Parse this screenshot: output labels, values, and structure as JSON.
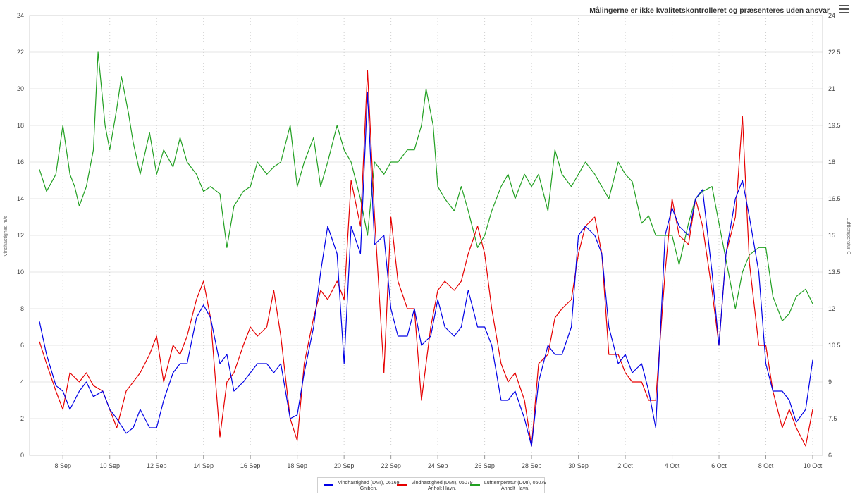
{
  "notice": "Målingerne er ikke kvalitetskontrolleret og præsenteres uden ansvar",
  "menu_icon": "hamburger-menu-icon",
  "chart_data": {
    "type": "line",
    "x_tick_labels": [
      "8 Sep",
      "10 Sep",
      "12 Sep",
      "14 Sep",
      "16 Sep",
      "18 Sep",
      "20 Sep",
      "22 Sep",
      "24 Sep",
      "26 Sep",
      "28 Sep",
      "30 Sep",
      "2 Oct",
      "4 Oct",
      "6 Oct",
      "8 Oct",
      "10 Oct"
    ],
    "x_range_days": [
      0,
      33
    ],
    "ylabel_left": "Vindhastighed m/s",
    "ylabel_right": "Lufttemperatur C",
    "ylim_left": [
      0,
      24
    ],
    "ylim_right": [
      6,
      24
    ],
    "yticks_left": [
      "0",
      "2",
      "4",
      "6",
      "8",
      "10",
      "12",
      "14",
      "16",
      "18",
      "20",
      "22",
      "24"
    ],
    "yticks_right": [
      "6",
      "7.5",
      "9",
      "10.5",
      "12",
      "13.5",
      "15",
      "16.5",
      "18",
      "19.5",
      "21",
      "22.5",
      "24"
    ],
    "grid": true,
    "legend_position": "bottom-center",
    "series": [
      {
        "name": "Vindhastighed (DMI), 06169 Gniben,",
        "axis": "left",
        "color": "#0000e6",
        "points": [
          [
            0,
            7.3
          ],
          [
            0.3,
            5.5
          ],
          [
            0.7,
            3.8
          ],
          [
            1,
            3.5
          ],
          [
            1.3,
            2.5
          ],
          [
            1.7,
            3.5
          ],
          [
            2,
            4.0
          ],
          [
            2.3,
            3.2
          ],
          [
            2.7,
            3.5
          ],
          [
            3,
            2.5
          ],
          [
            3.3,
            2.0
          ],
          [
            3.7,
            1.2
          ],
          [
            4,
            1.5
          ],
          [
            4.3,
            2.5
          ],
          [
            4.7,
            1.5
          ],
          [
            5,
            1.5
          ],
          [
            5.3,
            3.0
          ],
          [
            5.7,
            4.5
          ],
          [
            6,
            5.0
          ],
          [
            6.3,
            5.0
          ],
          [
            6.7,
            7.5
          ],
          [
            7,
            8.2
          ],
          [
            7.3,
            7.5
          ],
          [
            7.7,
            5.0
          ],
          [
            8,
            5.5
          ],
          [
            8.3,
            3.5
          ],
          [
            8.7,
            4.0
          ],
          [
            9,
            4.5
          ],
          [
            9.3,
            5.0
          ],
          [
            9.7,
            5.0
          ],
          [
            10,
            4.5
          ],
          [
            10.3,
            5.0
          ],
          [
            10.7,
            2.0
          ],
          [
            11,
            2.2
          ],
          [
            11.3,
            4.5
          ],
          [
            11.7,
            7.0
          ],
          [
            12,
            10.0
          ],
          [
            12.3,
            12.5
          ],
          [
            12.7,
            11.0
          ],
          [
            13,
            5.0
          ],
          [
            13.3,
            12.5
          ],
          [
            13.7,
            11.0
          ],
          [
            14,
            19.8
          ],
          [
            14.3,
            11.5
          ],
          [
            14.7,
            12.0
          ],
          [
            15,
            8.0
          ],
          [
            15.3,
            6.5
          ],
          [
            15.7,
            6.5
          ],
          [
            16,
            8.0
          ],
          [
            16.3,
            6.0
          ],
          [
            16.7,
            6.5
          ],
          [
            17,
            8.5
          ],
          [
            17.3,
            7.0
          ],
          [
            17.7,
            6.5
          ],
          [
            18,
            7.0
          ],
          [
            18.3,
            9.0
          ],
          [
            18.7,
            7.0
          ],
          [
            19,
            7.0
          ],
          [
            19.3,
            6.0
          ],
          [
            19.7,
            3.0
          ],
          [
            20,
            3.0
          ],
          [
            20.3,
            3.5
          ],
          [
            20.7,
            2.0
          ],
          [
            21,
            0.5
          ],
          [
            21.3,
            4.0
          ],
          [
            21.7,
            6.0
          ],
          [
            22,
            5.5
          ],
          [
            22.3,
            5.5
          ],
          [
            22.7,
            7.0
          ],
          [
            23,
            12.0
          ],
          [
            23.3,
            12.5
          ],
          [
            23.7,
            12.0
          ],
          [
            24,
            11.0
          ],
          [
            24.3,
            7.0
          ],
          [
            24.7,
            5.0
          ],
          [
            25,
            5.5
          ],
          [
            25.3,
            4.5
          ],
          [
            25.7,
            5.0
          ],
          [
            26,
            3.5
          ],
          [
            26.3,
            1.5
          ],
          [
            26.7,
            12.0
          ],
          [
            27,
            13.5
          ],
          [
            27.3,
            12.5
          ],
          [
            27.7,
            12.0
          ],
          [
            28,
            14.0
          ],
          [
            28.3,
            14.5
          ],
          [
            28.7,
            10.0
          ],
          [
            29,
            6.0
          ],
          [
            29.3,
            11.0
          ],
          [
            29.7,
            14.0
          ],
          [
            30,
            15.0
          ],
          [
            30.3,
            13.0
          ],
          [
            30.7,
            10.0
          ],
          [
            31,
            5.0
          ],
          [
            31.3,
            3.5
          ],
          [
            31.7,
            3.5
          ],
          [
            32,
            3.0
          ],
          [
            32.3,
            1.8
          ],
          [
            32.7,
            2.5
          ],
          [
            33,
            5.2
          ]
        ]
      },
      {
        "name": "Vindhastighed (DMI), 06079 Anholt Havn,",
        "axis": "left",
        "color": "#e60000",
        "points": [
          [
            0,
            6.2
          ],
          [
            0.3,
            5.0
          ],
          [
            0.7,
            3.5
          ],
          [
            1,
            2.5
          ],
          [
            1.3,
            4.5
          ],
          [
            1.7,
            4.0
          ],
          [
            2,
            4.5
          ],
          [
            2.3,
            3.8
          ],
          [
            2.7,
            3.5
          ],
          [
            3,
            2.5
          ],
          [
            3.3,
            1.5
          ],
          [
            3.7,
            3.5
          ],
          [
            4,
            4.0
          ],
          [
            4.3,
            4.5
          ],
          [
            4.7,
            5.5
          ],
          [
            5,
            6.5
          ],
          [
            5.3,
            4.0
          ],
          [
            5.7,
            6.0
          ],
          [
            6,
            5.5
          ],
          [
            6.3,
            6.5
          ],
          [
            6.7,
            8.5
          ],
          [
            7,
            9.5
          ],
          [
            7.3,
            7.5
          ],
          [
            7.7,
            1.0
          ],
          [
            8,
            4.0
          ],
          [
            8.3,
            4.5
          ],
          [
            8.7,
            6.0
          ],
          [
            9,
            7.0
          ],
          [
            9.3,
            6.5
          ],
          [
            9.7,
            7.0
          ],
          [
            10,
            9.0
          ],
          [
            10.3,
            6.5
          ],
          [
            10.7,
            2.0
          ],
          [
            11,
            0.8
          ],
          [
            11.3,
            5.0
          ],
          [
            11.7,
            7.5
          ],
          [
            12,
            9.0
          ],
          [
            12.3,
            8.5
          ],
          [
            12.7,
            9.5
          ],
          [
            13,
            8.5
          ],
          [
            13.3,
            15.0
          ],
          [
            13.7,
            12.5
          ],
          [
            14,
            21.0
          ],
          [
            14.3,
            13.0
          ],
          [
            14.7,
            4.5
          ],
          [
            15,
            13.0
          ],
          [
            15.3,
            9.5
          ],
          [
            15.7,
            8.0
          ],
          [
            16,
            8.0
          ],
          [
            16.3,
            3.0
          ],
          [
            16.7,
            7.0
          ],
          [
            17,
            9.0
          ],
          [
            17.3,
            9.5
          ],
          [
            17.7,
            9.0
          ],
          [
            18,
            9.5
          ],
          [
            18.3,
            11.0
          ],
          [
            18.7,
            12.5
          ],
          [
            19,
            11.0
          ],
          [
            19.3,
            8.0
          ],
          [
            19.7,
            5.0
          ],
          [
            20,
            4.0
          ],
          [
            20.3,
            4.5
          ],
          [
            20.7,
            3.0
          ],
          [
            21,
            0.5
          ],
          [
            21.3,
            5.0
          ],
          [
            21.7,
            5.5
          ],
          [
            22,
            7.5
          ],
          [
            22.3,
            8.0
          ],
          [
            22.7,
            8.5
          ],
          [
            23,
            11.0
          ],
          [
            23.3,
            12.5
          ],
          [
            23.7,
            13.0
          ],
          [
            24,
            11.0
          ],
          [
            24.3,
            5.5
          ],
          [
            24.7,
            5.5
          ],
          [
            25,
            4.5
          ],
          [
            25.3,
            4.0
          ],
          [
            25.7,
            4.0
          ],
          [
            26,
            3.0
          ],
          [
            26.3,
            3.0
          ],
          [
            26.7,
            10.0
          ],
          [
            27,
            14.0
          ],
          [
            27.3,
            12.0
          ],
          [
            27.7,
            11.5
          ],
          [
            28,
            14.0
          ],
          [
            28.3,
            12.5
          ],
          [
            28.7,
            9.0
          ],
          [
            29,
            6.0
          ],
          [
            29.3,
            11.0
          ],
          [
            29.7,
            13.0
          ],
          [
            30,
            18.5
          ],
          [
            30.3,
            10.5
          ],
          [
            30.7,
            6.0
          ],
          [
            31,
            6.0
          ],
          [
            31.3,
            3.5
          ],
          [
            31.7,
            1.5
          ],
          [
            32,
            2.5
          ],
          [
            32.3,
            1.5
          ],
          [
            32.7,
            0.5
          ],
          [
            33,
            2.5
          ]
        ]
      },
      {
        "name": "Lufttemperatur (DMI), 06079 Anholt Havn,",
        "axis": "right",
        "color": "#22a022",
        "points": [
          [
            0,
            17.7
          ],
          [
            0.3,
            16.8
          ],
          [
            0.7,
            17.5
          ],
          [
            1,
            19.5
          ],
          [
            1.3,
            17.5
          ],
          [
            1.5,
            17.0
          ],
          [
            1.7,
            16.2
          ],
          [
            2,
            17.0
          ],
          [
            2.3,
            18.5
          ],
          [
            2.5,
            22.5
          ],
          [
            2.8,
            19.5
          ],
          [
            3,
            18.5
          ],
          [
            3.3,
            20.2
          ],
          [
            3.5,
            21.5
          ],
          [
            3.8,
            20.0
          ],
          [
            4,
            18.8
          ],
          [
            4.3,
            17.5
          ],
          [
            4.7,
            19.2
          ],
          [
            5,
            17.5
          ],
          [
            5.3,
            18.5
          ],
          [
            5.7,
            17.8
          ],
          [
            6,
            19.0
          ],
          [
            6.3,
            18.0
          ],
          [
            6.7,
            17.5
          ],
          [
            7,
            16.8
          ],
          [
            7.3,
            17.0
          ],
          [
            7.7,
            16.7
          ],
          [
            8,
            14.5
          ],
          [
            8.3,
            16.2
          ],
          [
            8.7,
            16.8
          ],
          [
            9,
            17.0
          ],
          [
            9.3,
            18.0
          ],
          [
            9.7,
            17.5
          ],
          [
            10,
            17.8
          ],
          [
            10.3,
            18.0
          ],
          [
            10.7,
            19.5
          ],
          [
            11,
            17.0
          ],
          [
            11.3,
            18.0
          ],
          [
            11.7,
            19.0
          ],
          [
            12,
            17.0
          ],
          [
            12.3,
            18.0
          ],
          [
            12.7,
            19.5
          ],
          [
            13,
            18.5
          ],
          [
            13.3,
            18.0
          ],
          [
            13.7,
            16.5
          ],
          [
            14,
            15.0
          ],
          [
            14.3,
            18.0
          ],
          [
            14.7,
            17.5
          ],
          [
            15,
            18.0
          ],
          [
            15.3,
            18.0
          ],
          [
            15.7,
            18.5
          ],
          [
            16,
            18.5
          ],
          [
            16.3,
            19.5
          ],
          [
            16.5,
            21.0
          ],
          [
            16.8,
            19.5
          ],
          [
            17,
            17.0
          ],
          [
            17.3,
            16.5
          ],
          [
            17.7,
            16.0
          ],
          [
            18,
            17.0
          ],
          [
            18.3,
            16.0
          ],
          [
            18.7,
            14.5
          ],
          [
            19,
            15.0
          ],
          [
            19.3,
            16.0
          ],
          [
            19.7,
            17.0
          ],
          [
            20,
            17.5
          ],
          [
            20.3,
            16.5
          ],
          [
            20.7,
            17.5
          ],
          [
            21,
            17.0
          ],
          [
            21.3,
            17.5
          ],
          [
            21.7,
            16.0
          ],
          [
            22,
            18.5
          ],
          [
            22.3,
            17.5
          ],
          [
            22.7,
            17.0
          ],
          [
            23,
            17.5
          ],
          [
            23.3,
            18.0
          ],
          [
            23.7,
            17.5
          ],
          [
            24,
            17.0
          ],
          [
            24.3,
            16.5
          ],
          [
            24.7,
            18.0
          ],
          [
            25,
            17.5
          ],
          [
            25.3,
            17.2
          ],
          [
            25.7,
            15.5
          ],
          [
            26,
            15.8
          ],
          [
            26.3,
            15.0
          ],
          [
            26.7,
            15.0
          ],
          [
            27,
            15.0
          ],
          [
            27.3,
            13.8
          ],
          [
            27.7,
            15.5
          ],
          [
            28,
            16.5
          ],
          [
            28.3,
            16.8
          ],
          [
            28.7,
            17.0
          ],
          [
            29,
            15.5
          ],
          [
            29.3,
            14.0
          ],
          [
            29.7,
            12.0
          ],
          [
            30,
            13.5
          ],
          [
            30.3,
            14.2
          ],
          [
            30.7,
            14.5
          ],
          [
            31,
            14.5
          ],
          [
            31.3,
            12.5
          ],
          [
            31.7,
            11.5
          ],
          [
            32,
            11.8
          ],
          [
            32.3,
            12.5
          ],
          [
            32.7,
            12.8
          ],
          [
            33,
            12.2
          ]
        ]
      }
    ]
  }
}
